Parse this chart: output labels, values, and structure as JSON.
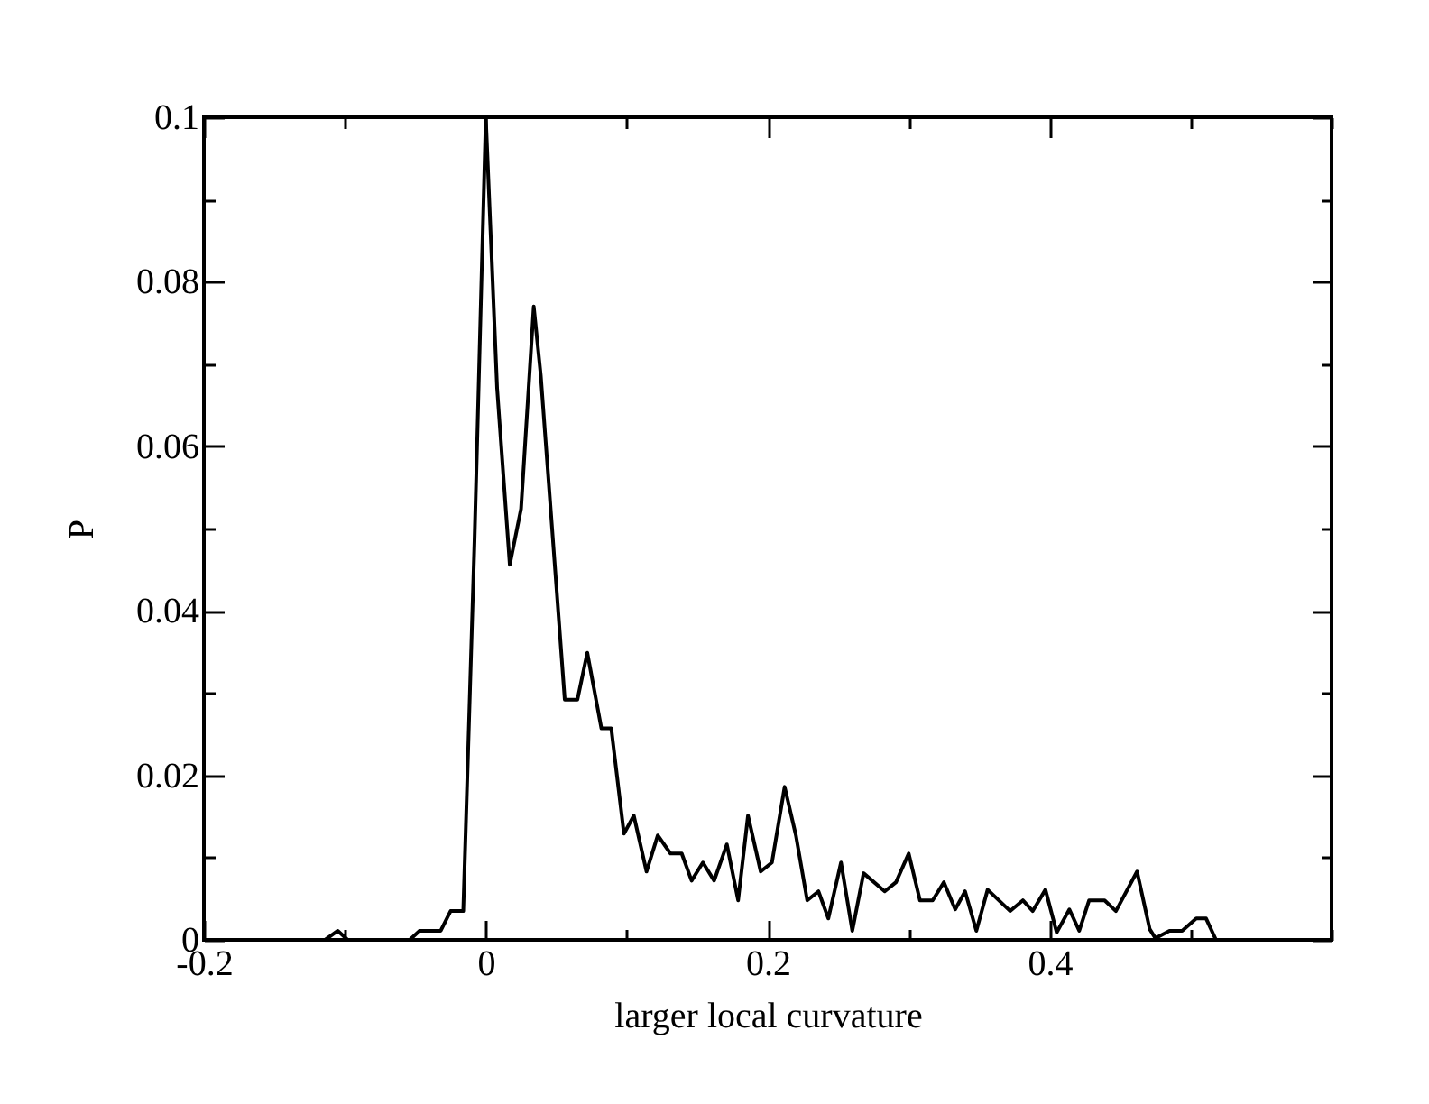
{
  "chart_data": {
    "type": "line",
    "xlabel": "larger local curvature",
    "ylabel": "P",
    "xlim": [
      -0.2,
      0.6
    ],
    "ylim": [
      0,
      0.1
    ],
    "xticks": [
      -0.2,
      0,
      0.2,
      0.4,
      {
        "value": 0.6,
        "label": null
      },
      {
        "value": -0.1,
        "label": null
      },
      {
        "value": 0.1,
        "label": null
      },
      {
        "value": 0.3,
        "label": null
      },
      {
        "value": 0.5,
        "label": null
      }
    ],
    "yticks": [
      0,
      0.02,
      0.04,
      0.06,
      0.08,
      0.1,
      {
        "value": 0.01,
        "label": null
      },
      {
        "value": 0.03,
        "label": null
      },
      {
        "value": 0.05,
        "label": null
      },
      {
        "value": 0.07,
        "label": null
      },
      {
        "value": 0.09,
        "label": null
      }
    ],
    "grid": false,
    "legend": false,
    "marker": "none",
    "line_style": "solid",
    "series": [
      {
        "color": "#000000",
        "x": [
          -0.114,
          -0.105,
          -0.098,
          -0.054,
          -0.047,
          -0.032,
          -0.025,
          -0.016,
          -0.008,
          0,
          0.008,
          0.017,
          0.025,
          0.034,
          0.039,
          0.056,
          0.065,
          0.072,
          0.082,
          0.089,
          0.098,
          0.105,
          0.114,
          0.122,
          0.131,
          0.139,
          0.146,
          0.154,
          0.162,
          0.171,
          0.179,
          0.186,
          0.195,
          0.203,
          0.212,
          0.22,
          0.228,
          0.236,
          0.243,
          0.252,
          0.26,
          0.268,
          0.283,
          0.291,
          0.3,
          0.308,
          0.317,
          0.325,
          0.333,
          0.34,
          0.348,
          0.356,
          0.372,
          0.381,
          0.388,
          0.397,
          0.405,
          0.414,
          0.421,
          0.428,
          0.439,
          0.447,
          0.462,
          0.471,
          0.475,
          0.485,
          0.494,
          0.504,
          0.511,
          0.518
        ],
        "values": [
          0,
          0.0011,
          0,
          0,
          0.0011,
          0.0011,
          0.0035,
          0.0035,
          0.0485,
          0.1,
          0.0671,
          0.0456,
          0.0524,
          0.077,
          0.0686,
          0.0292,
          0.0292,
          0.0349,
          0.0257,
          0.0257,
          0.0129,
          0.0151,
          0.0083,
          0.0127,
          0.0105,
          0.0105,
          0.0072,
          0.0094,
          0.0072,
          0.0116,
          0.0048,
          0.0151,
          0.0083,
          0.0094,
          0.0186,
          0.0127,
          0.0048,
          0.0059,
          0.0026,
          0.0094,
          0.0011,
          0.0081,
          0.0059,
          0.007,
          0.0105,
          0.0048,
          0.0048,
          0.007,
          0.0037,
          0.0059,
          0.0011,
          0.0061,
          0.0035,
          0.0048,
          0.0035,
          0.0061,
          0.0009,
          0.0037,
          0.0011,
          0.0048,
          0.0048,
          0.0035,
          0.0083,
          0.0013,
          0.0002,
          0.0011,
          0.0011,
          0.0026,
          0.0026,
          0
        ]
      }
    ]
  }
}
